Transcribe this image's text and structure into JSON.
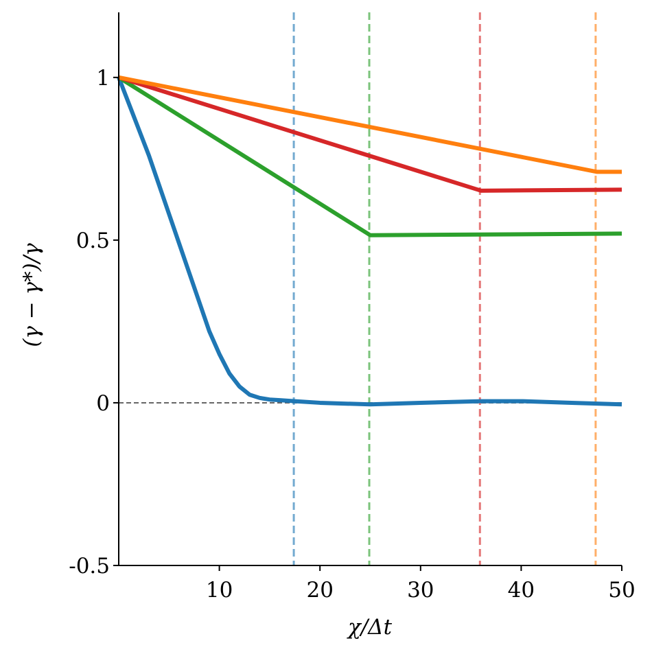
{
  "chart_data": {
    "type": "line",
    "xlabel": "χ/Δt",
    "ylabel": "(γ − γ*)/γ",
    "xlim": [
      0,
      50
    ],
    "ylim": [
      -0.5,
      1.2
    ],
    "xticks": [
      10,
      20,
      30,
      40,
      50
    ],
    "xtick_labels": [
      "10",
      "20",
      "30",
      "40",
      "50"
    ],
    "yticks": [
      -0.5,
      0,
      0.5,
      1
    ],
    "ytick_labels": [
      "-0.5",
      "0",
      "0.5",
      "1"
    ],
    "grid": false,
    "reference_line": {
      "y": 0,
      "style": "dashed",
      "color": "#666666"
    },
    "series": [
      {
        "color": "#1f77b4",
        "x": [
          0,
          1,
          2,
          3,
          4,
          5,
          6,
          7,
          8,
          9,
          10,
          11,
          12,
          13,
          14,
          15,
          16,
          17.5,
          20,
          25,
          30,
          36,
          40,
          45,
          50
        ],
        "y": [
          1.0,
          0.92,
          0.84,
          0.76,
          0.67,
          0.58,
          0.49,
          0.4,
          0.31,
          0.22,
          0.15,
          0.09,
          0.05,
          0.025,
          0.015,
          0.01,
          0.008,
          0.005,
          0.0,
          -0.005,
          0.0,
          0.005,
          0.005,
          0.0,
          -0.005
        ],
        "cutoff_x": 17.4
      },
      {
        "color": "#2ca02c",
        "x": [
          0,
          25,
          50
        ],
        "y": [
          1.0,
          0.515,
          0.52
        ],
        "cutoff_x": 24.9
      },
      {
        "color": "#d62728",
        "x": [
          0,
          36,
          50
        ],
        "y": [
          1.0,
          0.652,
          0.655
        ],
        "cutoff_x": 35.9
      },
      {
        "color": "#ff7f0e",
        "x": [
          0,
          47.5,
          50
        ],
        "y": [
          1.0,
          0.71,
          0.71
        ],
        "cutoff_x": 47.4
      }
    ]
  }
}
